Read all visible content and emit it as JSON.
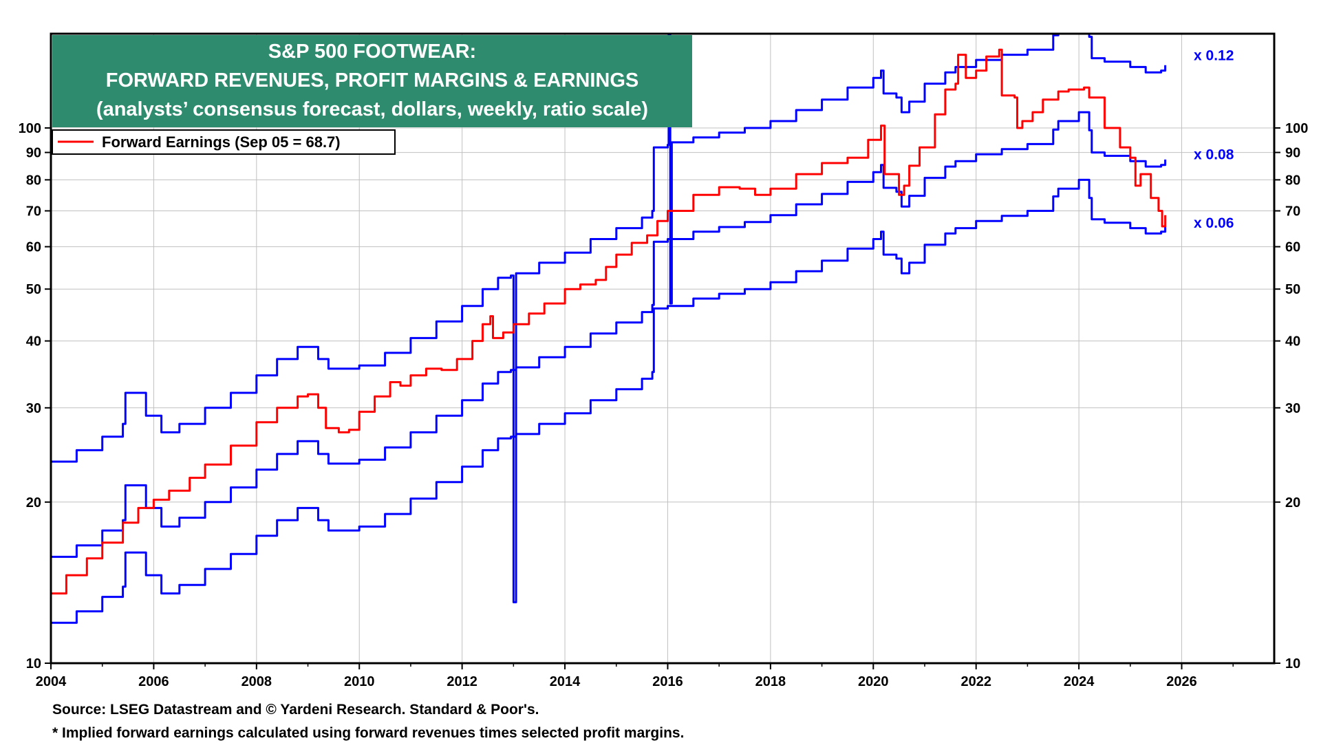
{
  "colors": {
    "earnings": "#ff0000",
    "margin_lines": "#0000ff",
    "title_box": "#2e8b6e",
    "title_text": "#ffffff",
    "grid": "#c0c0c0"
  },
  "chart_data": {
    "type": "line",
    "title_lines": [
      "S&P 500 FOOTWEAR:",
      "FORWARD REVENUES, PROFIT MARGINS & EARNINGS",
      "(analysts’ consensus forecast, dollars, weekly, ratio scale)"
    ],
    "legend_label": "Forward Earnings (Sep 05 = 68.7)",
    "legend_placement": "top-left",
    "x_ticks": [
      "2004",
      "2006",
      "2008",
      "2010",
      "2012",
      "2014",
      "2016",
      "2018",
      "2020",
      "2022",
      "2024",
      "2026"
    ],
    "x_range": [
      2004,
      2027.8
    ],
    "y_scale": "log",
    "y_range": [
      10,
      150
    ],
    "y_ticks": [
      "10",
      "20",
      "30",
      "40",
      "50",
      "60",
      "70",
      "80",
      "90",
      "100"
    ],
    "grid": true,
    "series": [
      {
        "name": "Forward Earnings (Sep 05 = 68.7)",
        "color": "#ff0000",
        "points": [
          [
            2004.0,
            13.5
          ],
          [
            2004.3,
            14.6
          ],
          [
            2004.7,
            15.7
          ],
          [
            2005.0,
            16.8
          ],
          [
            2005.4,
            18.3
          ],
          [
            2005.7,
            19.5
          ],
          [
            2006.0,
            20.2
          ],
          [
            2006.3,
            21.0
          ],
          [
            2006.7,
            22.2
          ],
          [
            2007.0,
            23.5
          ],
          [
            2007.5,
            25.5
          ],
          [
            2008.0,
            28.2
          ],
          [
            2008.4,
            30.0
          ],
          [
            2008.8,
            31.5
          ],
          [
            2009.0,
            31.8
          ],
          [
            2009.2,
            30.0
          ],
          [
            2009.35,
            27.5
          ],
          [
            2009.6,
            27.0
          ],
          [
            2009.8,
            27.3
          ],
          [
            2010.0,
            29.5
          ],
          [
            2010.3,
            31.5
          ],
          [
            2010.6,
            33.5
          ],
          [
            2010.8,
            33.0
          ],
          [
            2011.0,
            34.5
          ],
          [
            2011.3,
            35.5
          ],
          [
            2011.6,
            35.3
          ],
          [
            2011.9,
            37.0
          ],
          [
            2012.2,
            40.0
          ],
          [
            2012.4,
            43.0
          ],
          [
            2012.55,
            44.5
          ],
          [
            2012.6,
            40.5
          ],
          [
            2012.8,
            41.5
          ],
          [
            2013.0,
            43.0
          ],
          [
            2013.3,
            45.0
          ],
          [
            2013.6,
            47.0
          ],
          [
            2014.0,
            50.0
          ],
          [
            2014.3,
            51.0
          ],
          [
            2014.6,
            52.0
          ],
          [
            2014.8,
            55.0
          ],
          [
            2015.0,
            58.0
          ],
          [
            2015.3,
            61.0
          ],
          [
            2015.6,
            63.0
          ],
          [
            2015.8,
            67.0
          ],
          [
            2016.0,
            70.0
          ],
          [
            2016.5,
            75.0
          ],
          [
            2017.0,
            77.5
          ],
          [
            2017.4,
            77.0
          ],
          [
            2017.7,
            75.0
          ],
          [
            2018.0,
            77.0
          ],
          [
            2018.5,
            82.0
          ],
          [
            2019.0,
            86.0
          ],
          [
            2019.5,
            88.0
          ],
          [
            2019.9,
            95.0
          ],
          [
            2020.15,
            101.0
          ],
          [
            2020.22,
            82.0
          ],
          [
            2020.45,
            82.0
          ],
          [
            2020.5,
            75.0
          ],
          [
            2020.6,
            78.0
          ],
          [
            2020.7,
            85.0
          ],
          [
            2020.9,
            92.0
          ],
          [
            2021.2,
            106.0
          ],
          [
            2021.4,
            118.0
          ],
          [
            2021.6,
            121.0
          ],
          [
            2021.65,
            137.0
          ],
          [
            2021.8,
            124.0
          ],
          [
            2022.0,
            128.0
          ],
          [
            2022.2,
            136.0
          ],
          [
            2022.45,
            140.0
          ],
          [
            2022.5,
            115.0
          ],
          [
            2022.75,
            114.0
          ],
          [
            2022.8,
            100.0
          ],
          [
            2022.9,
            103.0
          ],
          [
            2023.1,
            107.0
          ],
          [
            2023.3,
            113.0
          ],
          [
            2023.6,
            117.0
          ],
          [
            2023.8,
            118.0
          ],
          [
            2024.1,
            119.0
          ],
          [
            2024.2,
            114.0
          ],
          [
            2024.5,
            100.0
          ],
          [
            2024.8,
            92.0
          ],
          [
            2025.0,
            88.0
          ],
          [
            2025.1,
            78.0
          ],
          [
            2025.2,
            82.0
          ],
          [
            2025.4,
            74.0
          ],
          [
            2025.55,
            70.0
          ],
          [
            2025.62,
            65.5
          ],
          [
            2025.68,
            68.7
          ]
        ]
      },
      {
        "name": "x 0.12",
        "color": "#0000ff",
        "points": [
          [
            2004.0,
            23.8
          ],
          [
            2004.5,
            25.0
          ],
          [
            2005.0,
            26.5
          ],
          [
            2005.4,
            28.0
          ],
          [
            2005.45,
            32.0
          ],
          [
            2005.8,
            32.0
          ],
          [
            2005.85,
            29.0
          ],
          [
            2006.1,
            29.0
          ],
          [
            2006.15,
            27.0
          ],
          [
            2006.5,
            28.0
          ],
          [
            2007.0,
            30.0
          ],
          [
            2007.5,
            32.0
          ],
          [
            2008.0,
            34.5
          ],
          [
            2008.4,
            37.0
          ],
          [
            2008.8,
            39.0
          ],
          [
            2009.0,
            39.0
          ],
          [
            2009.2,
            37.0
          ],
          [
            2009.4,
            35.5
          ],
          [
            2009.8,
            35.5
          ],
          [
            2010.0,
            36.0
          ],
          [
            2010.5,
            38.0
          ],
          [
            2011.0,
            40.5
          ],
          [
            2011.5,
            43.5
          ],
          [
            2012.0,
            46.5
          ],
          [
            2012.4,
            50.0
          ],
          [
            2012.7,
            52.5
          ],
          [
            2012.95,
            53.0
          ],
          [
            2013.0,
            13.0
          ],
          [
            2013.05,
            53.5
          ],
          [
            2013.5,
            56.0
          ],
          [
            2014.0,
            58.5
          ],
          [
            2014.5,
            62.0
          ],
          [
            2015.0,
            65.0
          ],
          [
            2015.5,
            68.0
          ],
          [
            2015.7,
            70.0
          ],
          [
            2015.73,
            92.0
          ],
          [
            2016.0,
            93.0
          ],
          [
            2016.02,
            200.0
          ],
          [
            2016.05,
            47.0
          ],
          [
            2016.08,
            94.0
          ],
          [
            2016.5,
            96.0
          ],
          [
            2017.0,
            98.0
          ],
          [
            2017.5,
            100.0
          ],
          [
            2018.0,
            103.0
          ],
          [
            2018.5,
            108.0
          ],
          [
            2019.0,
            113.0
          ],
          [
            2019.5,
            119.0
          ],
          [
            2020.0,
            124.0
          ],
          [
            2020.15,
            128.0
          ],
          [
            2020.2,
            116.0
          ],
          [
            2020.45,
            114.0
          ],
          [
            2020.55,
            107.0
          ],
          [
            2020.7,
            112.0
          ],
          [
            2021.0,
            121.0
          ],
          [
            2021.4,
            127.0
          ],
          [
            2021.6,
            130.0
          ],
          [
            2022.0,
            134.0
          ],
          [
            2022.5,
            137.0
          ],
          [
            2023.0,
            140.0
          ],
          [
            2023.5,
            149.0
          ],
          [
            2023.6,
            160.0
          ],
          [
            2024.0,
            165.0
          ],
          [
            2024.2,
            148.0
          ],
          [
            2024.25,
            135.0
          ],
          [
            2024.5,
            133.0
          ],
          [
            2025.0,
            130.0
          ],
          [
            2025.3,
            127.0
          ],
          [
            2025.6,
            128.0
          ],
          [
            2025.68,
            131.0
          ]
        ]
      },
      {
        "name": "x 0.08",
        "color": "#0000ff",
        "points": [
          [
            2004.0,
            15.8
          ],
          [
            2004.5,
            16.6
          ],
          [
            2005.0,
            17.7
          ],
          [
            2005.4,
            18.5
          ],
          [
            2005.45,
            21.5
          ],
          [
            2005.8,
            21.5
          ],
          [
            2005.85,
            19.5
          ],
          [
            2006.1,
            19.5
          ],
          [
            2006.15,
            18.0
          ],
          [
            2006.5,
            18.7
          ],
          [
            2007.0,
            20.0
          ],
          [
            2007.5,
            21.3
          ],
          [
            2008.0,
            23.0
          ],
          [
            2008.4,
            24.6
          ],
          [
            2008.8,
            26.0
          ],
          [
            2009.0,
            26.0
          ],
          [
            2009.2,
            24.6
          ],
          [
            2009.4,
            23.6
          ],
          [
            2009.8,
            23.6
          ],
          [
            2010.0,
            24.0
          ],
          [
            2010.5,
            25.3
          ],
          [
            2011.0,
            27.0
          ],
          [
            2011.5,
            29.0
          ],
          [
            2012.0,
            31.0
          ],
          [
            2012.4,
            33.3
          ],
          [
            2012.7,
            35.0
          ],
          [
            2012.95,
            35.3
          ],
          [
            2013.05,
            35.7
          ],
          [
            2013.5,
            37.3
          ],
          [
            2014.0,
            39.0
          ],
          [
            2014.5,
            41.3
          ],
          [
            2015.0,
            43.3
          ],
          [
            2015.5,
            45.3
          ],
          [
            2015.7,
            46.7
          ],
          [
            2015.73,
            61.3
          ],
          [
            2016.0,
            62.0
          ],
          [
            2016.5,
            64.0
          ],
          [
            2017.0,
            65.3
          ],
          [
            2017.5,
            66.7
          ],
          [
            2018.0,
            68.7
          ],
          [
            2018.5,
            72.0
          ],
          [
            2019.0,
            75.3
          ],
          [
            2019.5,
            79.3
          ],
          [
            2020.0,
            82.7
          ],
          [
            2020.15,
            85.3
          ],
          [
            2020.2,
            77.3
          ],
          [
            2020.45,
            76.0
          ],
          [
            2020.55,
            71.3
          ],
          [
            2020.7,
            74.7
          ],
          [
            2021.0,
            80.7
          ],
          [
            2021.4,
            84.7
          ],
          [
            2021.6,
            86.7
          ],
          [
            2022.0,
            89.3
          ],
          [
            2022.5,
            91.3
          ],
          [
            2023.0,
            93.3
          ],
          [
            2023.5,
            99.3
          ],
          [
            2023.6,
            103.0
          ],
          [
            2024.0,
            107.0
          ],
          [
            2024.2,
            99.0
          ],
          [
            2024.25,
            90.0
          ],
          [
            2024.5,
            88.7
          ],
          [
            2025.0,
            86.7
          ],
          [
            2025.3,
            84.7
          ],
          [
            2025.6,
            85.3
          ],
          [
            2025.68,
            87.3
          ]
        ]
      },
      {
        "name": "x 0.06",
        "color": "#0000ff",
        "points": [
          [
            2004.0,
            11.9
          ],
          [
            2004.5,
            12.5
          ],
          [
            2005.0,
            13.3
          ],
          [
            2005.4,
            13.9
          ],
          [
            2005.45,
            16.1
          ],
          [
            2005.8,
            16.1
          ],
          [
            2005.85,
            14.6
          ],
          [
            2006.1,
            14.6
          ],
          [
            2006.15,
            13.5
          ],
          [
            2006.5,
            14.0
          ],
          [
            2007.0,
            15.0
          ],
          [
            2007.5,
            16.0
          ],
          [
            2008.0,
            17.3
          ],
          [
            2008.4,
            18.5
          ],
          [
            2008.8,
            19.5
          ],
          [
            2009.0,
            19.5
          ],
          [
            2009.2,
            18.5
          ],
          [
            2009.4,
            17.7
          ],
          [
            2009.8,
            17.7
          ],
          [
            2010.0,
            18.0
          ],
          [
            2010.5,
            19.0
          ],
          [
            2011.0,
            20.3
          ],
          [
            2011.5,
            21.8
          ],
          [
            2012.0,
            23.3
          ],
          [
            2012.4,
            25.0
          ],
          [
            2012.7,
            26.3
          ],
          [
            2012.95,
            26.5
          ],
          [
            2013.05,
            26.8
          ],
          [
            2013.5,
            28.0
          ],
          [
            2014.0,
            29.3
          ],
          [
            2014.5,
            31.0
          ],
          [
            2015.0,
            32.5
          ],
          [
            2015.5,
            34.0
          ],
          [
            2015.7,
            35.0
          ],
          [
            2015.73,
            46.0
          ],
          [
            2016.0,
            46.5
          ],
          [
            2016.5,
            48.0
          ],
          [
            2017.0,
            49.0
          ],
          [
            2017.5,
            50.0
          ],
          [
            2018.0,
            51.5
          ],
          [
            2018.5,
            54.0
          ],
          [
            2019.0,
            56.5
          ],
          [
            2019.5,
            59.5
          ],
          [
            2020.0,
            62.0
          ],
          [
            2020.15,
            64.0
          ],
          [
            2020.2,
            58.0
          ],
          [
            2020.45,
            57.0
          ],
          [
            2020.55,
            53.5
          ],
          [
            2020.7,
            56.0
          ],
          [
            2021.0,
            60.5
          ],
          [
            2021.4,
            63.5
          ],
          [
            2021.6,
            65.0
          ],
          [
            2022.0,
            67.0
          ],
          [
            2022.5,
            68.5
          ],
          [
            2023.0,
            70.0
          ],
          [
            2023.5,
            74.5
          ],
          [
            2023.6,
            77.0
          ],
          [
            2024.0,
            80.0
          ],
          [
            2024.2,
            74.0
          ],
          [
            2024.25,
            67.5
          ],
          [
            2024.5,
            66.5
          ],
          [
            2025.0,
            65.0
          ],
          [
            2025.3,
            63.5
          ],
          [
            2025.6,
            64.0
          ],
          [
            2025.68,
            65.5
          ]
        ]
      }
    ],
    "series_labels": [
      {
        "text": "x 0.12",
        "value": 137
      },
      {
        "text": "x 0.08",
        "value": 89.5
      },
      {
        "text": "x 0.06",
        "value": 66.7
      }
    ]
  },
  "footnotes": [
    "Source: LSEG Datastream and © Yardeni Research. Standard & Poor's.",
    "* Implied forward earnings calculated using forward revenues times selected profit margins."
  ]
}
